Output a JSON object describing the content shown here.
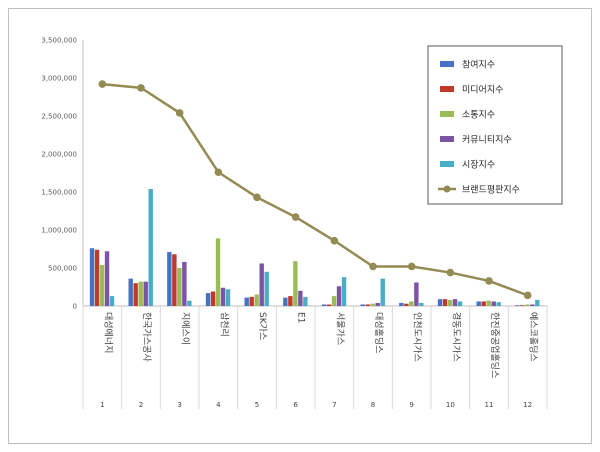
{
  "chart_data": {
    "type": "bar",
    "categories": [
      "대성에너지",
      "한국가스공사",
      "지에스이",
      "삼천리",
      "SK가스",
      "E1",
      "서울가스",
      "대성홀딩스",
      "인천도시가스",
      "경동도시가스",
      "한진중공업홀딩스",
      "예스코홀딩스"
    ],
    "ranks": [
      "1",
      "2",
      "3",
      "4",
      "5",
      "6",
      "7",
      "8",
      "9",
      "10",
      "11",
      "12"
    ],
    "ylim": [
      0,
      3500000
    ],
    "yticks": [
      "0",
      "500,000",
      "1,000,000",
      "1,500,000",
      "2,000,000",
      "2,500,000",
      "3,000,000",
      "3,500,000"
    ],
    "yticks_values": [
      0,
      500000,
      1000000,
      1500000,
      2000000,
      2500000,
      3000000,
      3500000
    ],
    "grid": false,
    "legend": "top-right",
    "series": [
      {
        "name": "참여지수",
        "color": "#4472c4",
        "values": [
          760000,
          360000,
          710000,
          170000,
          110000,
          110000,
          20000,
          20000,
          40000,
          90000,
          60000,
          10000
        ]
      },
      {
        "name": "미디어지수",
        "color": "#c0392b",
        "values": [
          740000,
          300000,
          680000,
          190000,
          120000,
          130000,
          20000,
          20000,
          30000,
          90000,
          60000,
          10000
        ]
      },
      {
        "name": "소통지수",
        "color": "#9bbb59",
        "values": [
          540000,
          320000,
          500000,
          890000,
          150000,
          590000,
          130000,
          30000,
          60000,
          80000,
          70000,
          20000
        ]
      },
      {
        "name": "커뮤니티지수",
        "color": "#7b54a3",
        "values": [
          720000,
          320000,
          580000,
          240000,
          560000,
          200000,
          260000,
          40000,
          310000,
          90000,
          60000,
          20000
        ]
      },
      {
        "name": "시장지수",
        "color": "#4bacc6",
        "values": [
          130000,
          1540000,
          70000,
          220000,
          450000,
          120000,
          380000,
          360000,
          40000,
          60000,
          50000,
          80000
        ]
      }
    ],
    "line_series": {
      "name": "브랜드평판지수",
      "color": "#948a54",
      "values": [
        2920000,
        2870000,
        2540000,
        1760000,
        1430000,
        1170000,
        860000,
        520000,
        520000,
        440000,
        330000,
        140000
      ]
    }
  }
}
